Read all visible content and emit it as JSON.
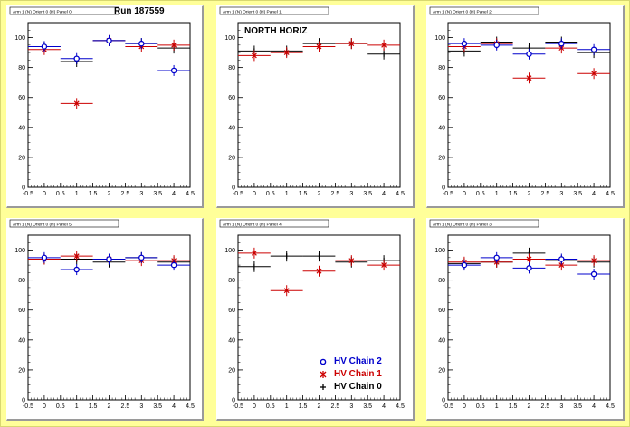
{
  "run_label": "Run 187559",
  "region_label": "NORTH HORIZ",
  "colors": {
    "chain2": "#0000cc",
    "chain1": "#cc0000",
    "chain0": "#000000",
    "pad_title_bg": "#ffffff"
  },
  "legend": [
    {
      "label": "HV Chain 2",
      "color": "#0000cc",
      "marker": "circle"
    },
    {
      "label": "HV Chain 1",
      "color": "#cc0000",
      "marker": "star"
    },
    {
      "label": "HV Chain 0",
      "color": "#000000",
      "marker": "plus"
    }
  ],
  "chart_data": [
    {
      "type": "scatter",
      "title": "Arm 1 (N) Orient 0 (H) Panel 0",
      "xlim": [
        -0.5,
        4.5
      ],
      "ylim": [
        0,
        110
      ],
      "xticks": [
        "-0.5",
        "0",
        "0.5",
        "1",
        "1.5",
        "2",
        "2.5",
        "3",
        "3.5",
        "4",
        "4.5"
      ],
      "yticks": [
        "0",
        "20",
        "40",
        "60",
        "80",
        "100"
      ],
      "series": [
        {
          "name": "HV Chain 0",
          "points": [
            [
              0,
              94
            ],
            [
              1,
              84
            ],
            [
              2,
              98
            ],
            [
              3,
              96
            ],
            [
              4,
              93
            ]
          ]
        },
        {
          "name": "HV Chain 1",
          "points": [
            [
              0,
              92
            ],
            [
              1,
              56
            ],
            [
              2,
              98
            ],
            [
              3,
              94
            ],
            [
              4,
              95
            ]
          ]
        },
        {
          "name": "HV Chain 2",
          "points": [
            [
              0,
              94
            ],
            [
              1,
              86
            ],
            [
              2,
              98
            ],
            [
              3,
              96
            ],
            [
              4,
              78
            ]
          ]
        }
      ]
    },
    {
      "type": "scatter",
      "title": "Arm 1 (N) Orient 0 (H) Panel 1",
      "xlim": [
        -0.5,
        4.5
      ],
      "ylim": [
        0,
        110
      ],
      "xticks": [
        "-0.5",
        "0",
        "0.5",
        "1",
        "1.5",
        "2",
        "2.5",
        "3",
        "3.5",
        "4",
        "4.5"
      ],
      "yticks": [
        "0",
        "20",
        "40",
        "60",
        "80",
        "100"
      ],
      "series": [
        {
          "name": "HV Chain 0",
          "points": [
            [
              0,
              91
            ],
            [
              1,
              91
            ],
            [
              2,
              96
            ],
            [
              3,
              96
            ],
            [
              4,
              89
            ]
          ]
        },
        {
          "name": "HV Chain 1",
          "points": [
            [
              0,
              88
            ],
            [
              1,
              90
            ],
            [
              2,
              94
            ],
            [
              3,
              96
            ],
            [
              4,
              95
            ]
          ]
        },
        {
          "name": "HV Chain 2",
          "points": []
        }
      ]
    },
    {
      "type": "scatter",
      "title": "Arm 1 (N) Orient 0 (H) Panel 2",
      "xlim": [
        -0.5,
        4.5
      ],
      "ylim": [
        0,
        110
      ],
      "xticks": [
        "-0.5",
        "0",
        "0.5",
        "1",
        "1.5",
        "2",
        "2.5",
        "3",
        "3.5",
        "4",
        "4.5"
      ],
      "yticks": [
        "0",
        "20",
        "40",
        "60",
        "80",
        "100"
      ],
      "series": [
        {
          "name": "HV Chain 0",
          "points": [
            [
              0,
              91
            ],
            [
              1,
              97
            ],
            [
              2,
              93
            ],
            [
              3,
              97
            ],
            [
              4,
              90
            ]
          ]
        },
        {
          "name": "HV Chain 1",
          "points": [
            [
              0,
              94
            ],
            [
              1,
              96
            ],
            [
              2,
              73
            ],
            [
              3,
              93
            ],
            [
              4,
              76
            ]
          ]
        },
        {
          "name": "HV Chain 2",
          "points": [
            [
              0,
              96
            ],
            [
              1,
              95
            ],
            [
              2,
              89
            ],
            [
              3,
              96
            ],
            [
              4,
              92
            ]
          ]
        }
      ]
    },
    {
      "type": "scatter",
      "title": "Arm 1 (N) Orient 0 (H) Panel 5",
      "xlim": [
        -0.5,
        4.5
      ],
      "ylim": [
        0,
        110
      ],
      "xticks": [
        "-0.5",
        "0",
        "0.5",
        "1",
        "1.5",
        "2",
        "2.5",
        "3",
        "3.5",
        "4",
        "4.5"
      ],
      "yticks": [
        "0",
        "20",
        "40",
        "60",
        "80",
        "100"
      ],
      "series": [
        {
          "name": "HV Chain 0",
          "points": [
            [
              0,
              94
            ],
            [
              1,
              94
            ],
            [
              2,
              92
            ],
            [
              3,
              95
            ],
            [
              4,
              92
            ]
          ]
        },
        {
          "name": "HV Chain 1",
          "points": [
            [
              0,
              94
            ],
            [
              1,
              96
            ],
            [
              2,
              94
            ],
            [
              3,
              93
            ],
            [
              4,
              93
            ]
          ]
        },
        {
          "name": "HV Chain 2",
          "points": [
            [
              0,
              95
            ],
            [
              1,
              87
            ],
            [
              2,
              94
            ],
            [
              3,
              95
            ],
            [
              4,
              90
            ]
          ]
        }
      ]
    },
    {
      "type": "scatter",
      "title": "Arm 1 (N) Orient 0 (H) Panel 4",
      "xlim": [
        -0.5,
        4.5
      ],
      "ylim": [
        0,
        110
      ],
      "xticks": [
        "-0.5",
        "0",
        "0.5",
        "1",
        "1.5",
        "2",
        "2.5",
        "3",
        "3.5",
        "4",
        "4.5"
      ],
      "yticks": [
        "0",
        "20",
        "40",
        "60",
        "80",
        "100"
      ],
      "series": [
        {
          "name": "HV Chain 0",
          "points": [
            [
              0,
              89
            ],
            [
              1,
              96
            ],
            [
              2,
              96
            ],
            [
              3,
              92
            ],
            [
              4,
              93
            ]
          ]
        },
        {
          "name": "HV Chain 1",
          "points": [
            [
              0,
              98
            ],
            [
              1,
              73
            ],
            [
              2,
              86
            ],
            [
              3,
              93
            ],
            [
              4,
              90
            ]
          ]
        },
        {
          "name": "HV Chain 2",
          "points": []
        }
      ]
    },
    {
      "type": "scatter",
      "title": "Arm 1 (N) Orient 0 (H) Panel 3",
      "xlim": [
        -0.5,
        4.5
      ],
      "ylim": [
        0,
        110
      ],
      "xticks": [
        "-0.5",
        "0",
        "0.5",
        "1",
        "1.5",
        "2",
        "2.5",
        "3",
        "3.5",
        "4",
        "4.5"
      ],
      "yticks": [
        "0",
        "20",
        "40",
        "60",
        "80",
        "100"
      ],
      "series": [
        {
          "name": "HV Chain 0",
          "points": [
            [
              0,
              91
            ],
            [
              1,
              92
            ],
            [
              2,
              98
            ],
            [
              3,
              93
            ],
            [
              4,
              92
            ]
          ]
        },
        {
          "name": "HV Chain 1",
          "points": [
            [
              0,
              92
            ],
            [
              1,
              92
            ],
            [
              2,
              94
            ],
            [
              3,
              90
            ],
            [
              4,
              93
            ]
          ]
        },
        {
          "name": "HV Chain 2",
          "points": [
            [
              0,
              90
            ],
            [
              1,
              95
            ],
            [
              2,
              88
            ],
            [
              3,
              94
            ],
            [
              4,
              84
            ]
          ]
        }
      ]
    }
  ]
}
